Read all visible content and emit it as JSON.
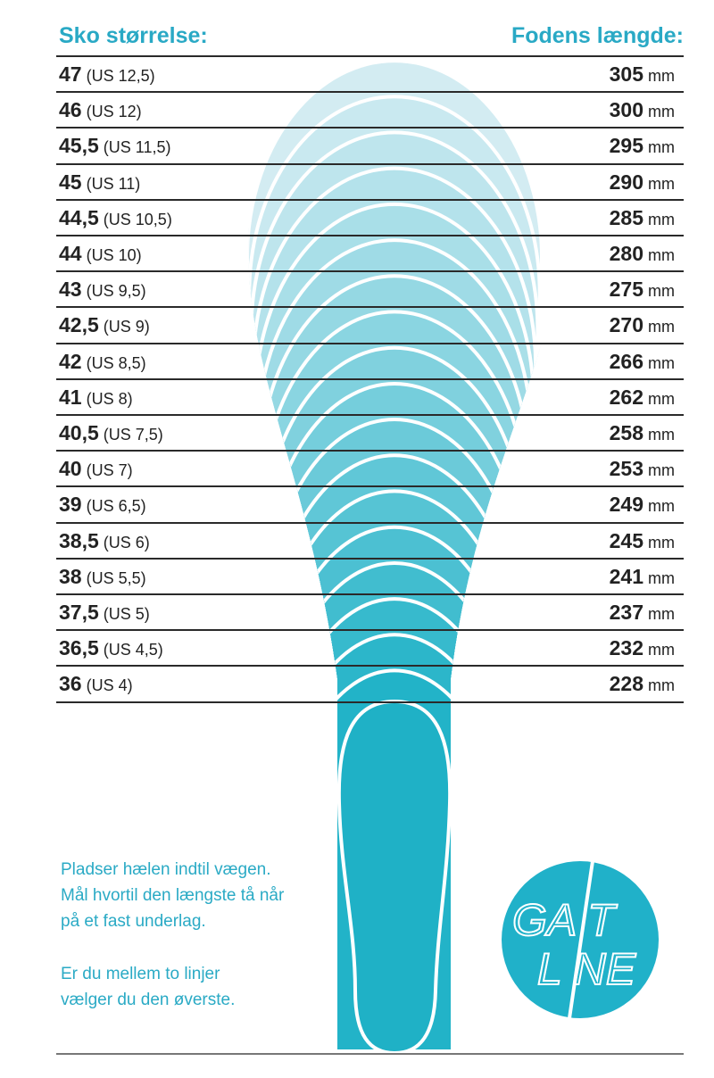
{
  "header": {
    "left": "Sko størrelse:",
    "right": "Fodens længde:"
  },
  "unit": "mm",
  "rows": [
    {
      "eu": "47",
      "us": "(US 12,5)",
      "length": "305"
    },
    {
      "eu": "46",
      "us": "(US 12)",
      "length": "300"
    },
    {
      "eu": "45,5",
      "us": "(US 11,5)",
      "length": "295"
    },
    {
      "eu": "45",
      "us": "(US 11)",
      "length": "290"
    },
    {
      "eu": "44,5",
      "us": "(US 10,5)",
      "length": "285"
    },
    {
      "eu": "44",
      "us": "(US 10)",
      "length": "280"
    },
    {
      "eu": "43",
      "us": "(US 9,5)",
      "length": "275"
    },
    {
      "eu": "42,5",
      "us": "(US 9)",
      "length": "270"
    },
    {
      "eu": "42",
      "us": "(US 8,5)",
      "length": "266"
    },
    {
      "eu": "41",
      "us": "(US 8)",
      "length": "262"
    },
    {
      "eu": "40,5",
      "us": "(US 7,5)",
      "length": "258"
    },
    {
      "eu": "40",
      "us": "(US 7)",
      "length": "253"
    },
    {
      "eu": "39",
      "us": "(US 6,5)",
      "length": "249"
    },
    {
      "eu": "38,5",
      "us": "(US 6)",
      "length": "245"
    },
    {
      "eu": "38",
      "us": "(US 5,5)",
      "length": "241"
    },
    {
      "eu": "37,5",
      "us": "(US 5)",
      "length": "237"
    },
    {
      "eu": "36,5",
      "us": "(US 4,5)",
      "length": "232"
    },
    {
      "eu": "36",
      "us": "(US 4)",
      "length": "228"
    }
  ],
  "instructions": {
    "p1": "Pladser hælen indtil vægen.\nMål hvortil den længste tå når\npå et fast underlag.",
    "p2": "Er du mellem to linjer\nvælger du den øverste."
  },
  "logo": {
    "text_top": "GA T",
    "text_bottom": "L NE",
    "brand": "GAITLINE"
  },
  "colors": {
    "accent": "#29a9c5",
    "foot_dark": "#1fb1c6",
    "foot_light": "#d3ecf2",
    "text": "#222222"
  }
}
